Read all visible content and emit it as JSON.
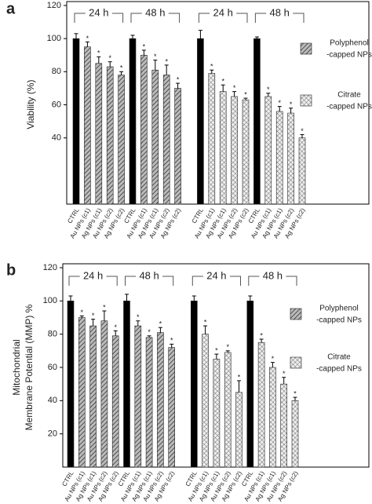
{
  "chart_data": [
    {
      "type": "bar",
      "panel_label": "a",
      "y_label": [
        "Viability (%)"
      ],
      "categories": [
        "CTRL",
        "Au NPs (c1)",
        "Ag NPs (c1)",
        "Au NPs (c2)",
        "Ag NPs (c2)",
        "CTRL",
        "Au NPs (c1)",
        "Ag NPs (c1)",
        "Au NPs (c2)",
        "Ag NPs (c2)",
        "CTRL",
        "Au NPs (c1)",
        "Ag NPs (c1)",
        "Au NPs (c2)",
        "Ag NPs (c2)",
        "CTRL",
        "Au NPs (c1)",
        "Ag NPs (c1)",
        "Au NPs (c2)",
        "Ag NPs (c2)"
      ],
      "values": [
        100,
        95,
        85,
        83,
        78,
        100,
        90,
        81,
        78,
        70,
        100,
        79,
        68,
        65,
        63,
        100,
        65,
        56,
        55,
        40
      ],
      "errors": [
        3,
        3,
        4,
        3,
        2,
        2,
        3,
        6,
        6,
        3,
        5,
        2,
        4,
        3,
        1,
        1,
        2,
        3,
        3,
        2
      ],
      "significance": [
        null,
        "*",
        "*",
        "*",
        "*",
        null,
        "*",
        "*",
        "*",
        "*",
        null,
        "*",
        "*",
        "*",
        "*",
        null,
        "*",
        "*",
        "*",
        "*"
      ],
      "patterns": [
        "solid",
        "hatch",
        "hatch",
        "hatch",
        "hatch",
        "solid",
        "hatch",
        "hatch",
        "hatch",
        "hatch",
        "solid",
        "cross",
        "cross",
        "cross",
        "cross",
        "solid",
        "cross",
        "cross",
        "cross",
        "cross"
      ],
      "group_labels": [
        "24 h",
        "48 h",
        "24 h",
        "48 h"
      ],
      "legend": [
        {
          "label": [
            "Polyphenol",
            "-capped NPs"
          ],
          "pattern": "hatch"
        },
        {
          "label": [
            "Citrate",
            "-capped NPs"
          ],
          "pattern": "cross"
        }
      ],
      "ylim": [
        0,
        120
      ],
      "yticks": [
        40,
        60,
        80,
        100,
        120
      ]
    },
    {
      "type": "bar",
      "panel_label": "b",
      "y_label": [
        "Mitochondrial",
        "Membrane Potential (MMP) %"
      ],
      "categories": [
        "CTRL",
        "Au NPs (c1)",
        "Ag NPs (c1)",
        "Au NPs (c2)",
        "Ag NPs (c2)",
        "CTRL",
        "Au NPs (c1)",
        "Ag NPs (c1)",
        "Au NPs (c2)",
        "Ag NPs (c2)",
        "CTRL",
        "Au NPs (c1)",
        "Ag NPs (c1)",
        "Au NPs (c2)",
        "Ag NPs (c2)",
        "CTRL",
        "Au NPs (c1)",
        "Ag NPs (c1)",
        "Au NPs (c2)",
        "Ag NPs (c2)"
      ],
      "values": [
        100,
        90,
        85,
        88,
        79,
        100,
        85,
        78,
        81,
        72,
        100,
        80,
        65,
        69,
        45,
        100,
        75,
        60,
        50,
        40
      ],
      "errors": [
        3,
        1,
        4,
        6,
        3,
        4,
        3,
        1,
        3,
        2,
        3,
        5,
        3,
        1,
        7,
        3,
        2,
        3,
        4,
        2
      ],
      "significance": [
        null,
        "*",
        "*",
        "*",
        "*",
        null,
        "*",
        "*",
        "*",
        "*",
        null,
        "*",
        "*",
        "*",
        "*",
        null,
        "*",
        "*",
        "*",
        "*"
      ],
      "patterns": [
        "solid",
        "hatch",
        "hatch",
        "hatch",
        "hatch",
        "solid",
        "hatch",
        "hatch",
        "hatch",
        "hatch",
        "solid",
        "cross",
        "cross",
        "cross",
        "cross",
        "solid",
        "cross",
        "cross",
        "cross",
        "cross"
      ],
      "group_labels": [
        "24 h",
        "48 h",
        "24 h",
        "48 h"
      ],
      "legend": [
        {
          "label": [
            "Polyphenol",
            "-capped NPs"
          ],
          "pattern": "hatch"
        },
        {
          "label": [
            "Citrate",
            "-capped NPs"
          ],
          "pattern": "cross"
        }
      ],
      "ylim": [
        0,
        120
      ],
      "yticks": [
        20,
        40,
        60,
        80,
        100,
        120
      ]
    }
  ]
}
